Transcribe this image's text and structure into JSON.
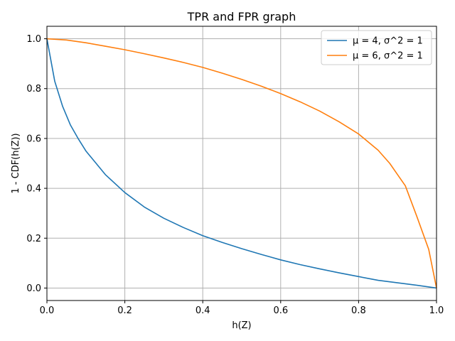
{
  "chart_data": {
    "type": "line",
    "title": "TPR and FPR graph",
    "xlabel": "h(Z)",
    "ylabel": "1 - CDF(h(Z))",
    "xlim": [
      0,
      1
    ],
    "ylim": [
      -0.05,
      1.05
    ],
    "xticks": [
      "0.0",
      "0.2",
      "0.4",
      "0.6",
      "0.8",
      "1.0"
    ],
    "yticks": [
      "0.0",
      "0.2",
      "0.4",
      "0.6",
      "0.8",
      "1.0"
    ],
    "grid": true,
    "legend_position": "top-right",
    "series": [
      {
        "name": "μ = 4, σ^2 = 1",
        "color": "#1f77b4",
        "x": [
          0.0,
          0.02,
          0.04,
          0.06,
          0.08,
          0.1,
          0.15,
          0.2,
          0.25,
          0.3,
          0.35,
          0.4,
          0.45,
          0.5,
          0.55,
          0.6,
          0.65,
          0.7,
          0.75,
          0.8,
          0.85,
          0.9,
          0.95,
          1.0
        ],
        "y": [
          1.0,
          0.83,
          0.73,
          0.655,
          0.6,
          0.55,
          0.455,
          0.383,
          0.325,
          0.28,
          0.243,
          0.21,
          0.183,
          0.158,
          0.135,
          0.113,
          0.094,
          0.077,
          0.061,
          0.046,
          0.031,
          0.021,
          0.011,
          0.0
        ]
      },
      {
        "name": "μ = 6, σ^2 = 1",
        "color": "#ff7f0e",
        "x": [
          0.0,
          0.05,
          0.1,
          0.15,
          0.2,
          0.25,
          0.3,
          0.35,
          0.4,
          0.45,
          0.5,
          0.55,
          0.6,
          0.65,
          0.7,
          0.75,
          0.8,
          0.85,
          0.88,
          0.9,
          0.92,
          0.95,
          0.98,
          1.0
        ],
        "y": [
          1.0,
          0.995,
          0.984,
          0.97,
          0.956,
          0.94,
          0.923,
          0.905,
          0.885,
          0.862,
          0.837,
          0.81,
          0.78,
          0.747,
          0.71,
          0.667,
          0.618,
          0.553,
          0.5,
          0.455,
          0.41,
          0.285,
          0.155,
          0.0
        ]
      }
    ]
  }
}
